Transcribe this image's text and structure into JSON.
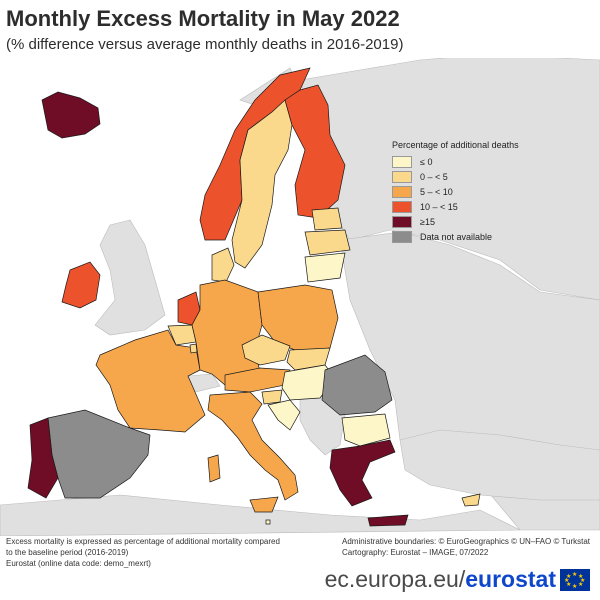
{
  "title": "Monthly Excess Mortality in May 2022",
  "subtitle": "(% difference versus average monthly deaths in 2016-2019)",
  "legend": {
    "title": "Percentage of additional deaths",
    "items": [
      {
        "label": "≤ 0",
        "color": "#fdf6c8"
      },
      {
        "label": "0 – < 5",
        "color": "#fbd98c"
      },
      {
        "label": "5 – < 10",
        "color": "#f7a74b"
      },
      {
        "label": "10 – < 15",
        "color": "#ec522c"
      },
      {
        "label": "≥15",
        "color": "#6e0d25"
      },
      {
        "label": "Data not available",
        "color": "#8c8c8c"
      }
    ]
  },
  "colors": {
    "sea": "#ffffff",
    "non_eu": "#e0e0e0",
    "border": "#1a1a1a"
  },
  "footer": {
    "note_line1": "Excess mortality is expressed as percentage of additional mortality compared",
    "note_line2": "to the baseline period (2016-2019)",
    "source": "Eurostat (online data code: demo_mexrt)",
    "admin": "Administrative boundaries: © EuroGeographics © UN–FAO © Turkstat",
    "cartography": "Cartography: Eurostat – IMAGE, 07/2022"
  },
  "brand": {
    "prefix": "ec.europa.eu/",
    "name": "eurostat"
  }
}
